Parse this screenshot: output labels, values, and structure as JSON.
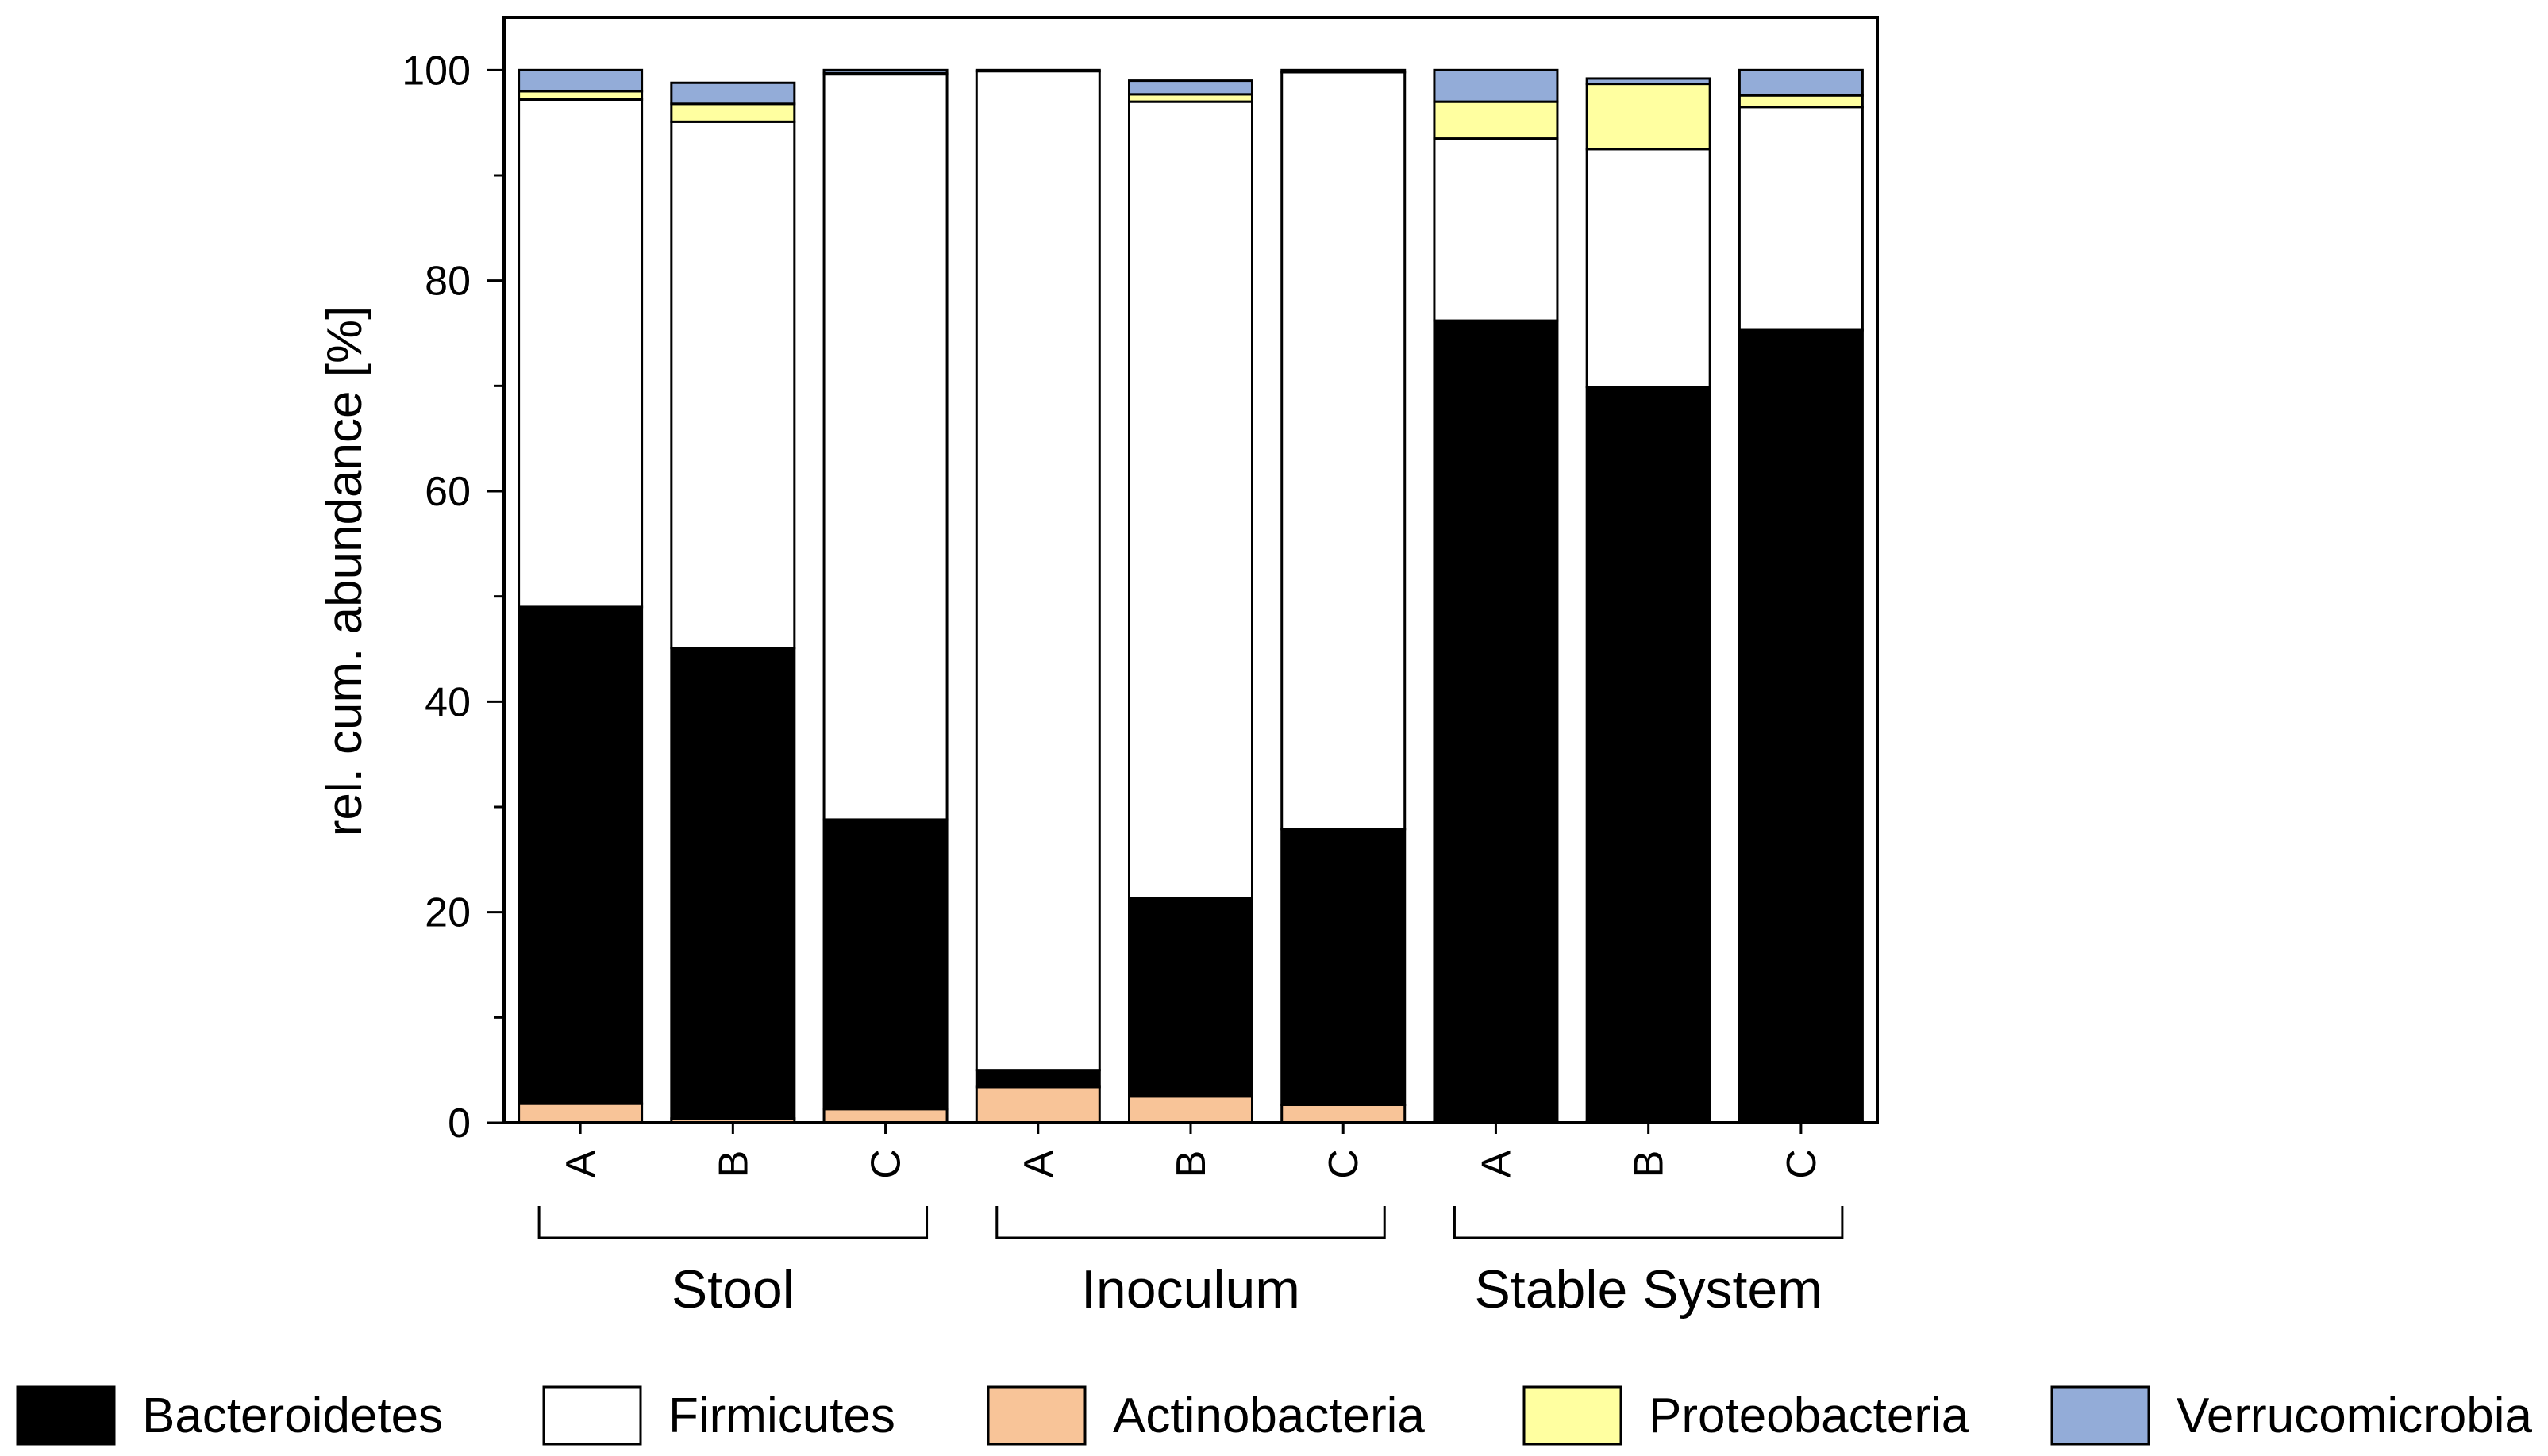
{
  "chart_data": {
    "type": "bar",
    "stacked": true,
    "title": "",
    "xlabel": "",
    "ylabel": "rel. cum. abundance [%]",
    "ylim": [
      0,
      105
    ],
    "yticks": [
      0,
      20,
      40,
      60,
      80,
      100
    ],
    "grid": false,
    "legend_position": "bottom",
    "categories": [
      "A",
      "B",
      "C",
      "A",
      "B",
      "C",
      "A",
      "B",
      "C"
    ],
    "groups": [
      {
        "name": "Stool",
        "categories": [
          "A",
          "B",
          "C"
        ]
      },
      {
        "name": "Inoculum",
        "categories": [
          "A",
          "B",
          "C"
        ]
      },
      {
        "name": "Stable System",
        "categories": [
          "A",
          "B",
          "C"
        ]
      }
    ],
    "series": [
      {
        "name": "Actinobacteria",
        "color": "#f8c498",
        "values": [
          1.8,
          0.4,
          1.3,
          3.4,
          2.5,
          1.7,
          0.1,
          0.1,
          0.1
        ]
      },
      {
        "name": "Bacteroidetes",
        "color": "#000000",
        "values": [
          47.2,
          44.7,
          27.5,
          1.6,
          18.8,
          26.2,
          76.1,
          69.8,
          75.2
        ]
      },
      {
        "name": "Firmicutes",
        "color": "#ffffff",
        "values": [
          48.2,
          50.0,
          70.8,
          94.9,
          75.7,
          71.9,
          17.3,
          22.6,
          21.2
        ]
      },
      {
        "name": "Proteobacteria",
        "color": "#ffffa0",
        "values": [
          0.8,
          1.7,
          0.1,
          0.0,
          0.7,
          0.0,
          3.5,
          6.2,
          1.1
        ]
      },
      {
        "name": "Verrucomicrobia",
        "color": "#93acd8",
        "values": [
          2.0,
          2.0,
          0.3,
          0.1,
          1.3,
          0.2,
          3.0,
          0.5,
          2.4
        ]
      }
    ],
    "legend": [
      "Bacteroidetes",
      "Firmicutes",
      "Actinobacteria",
      "Proteobacteria",
      "Verrucomicrobia"
    ]
  }
}
